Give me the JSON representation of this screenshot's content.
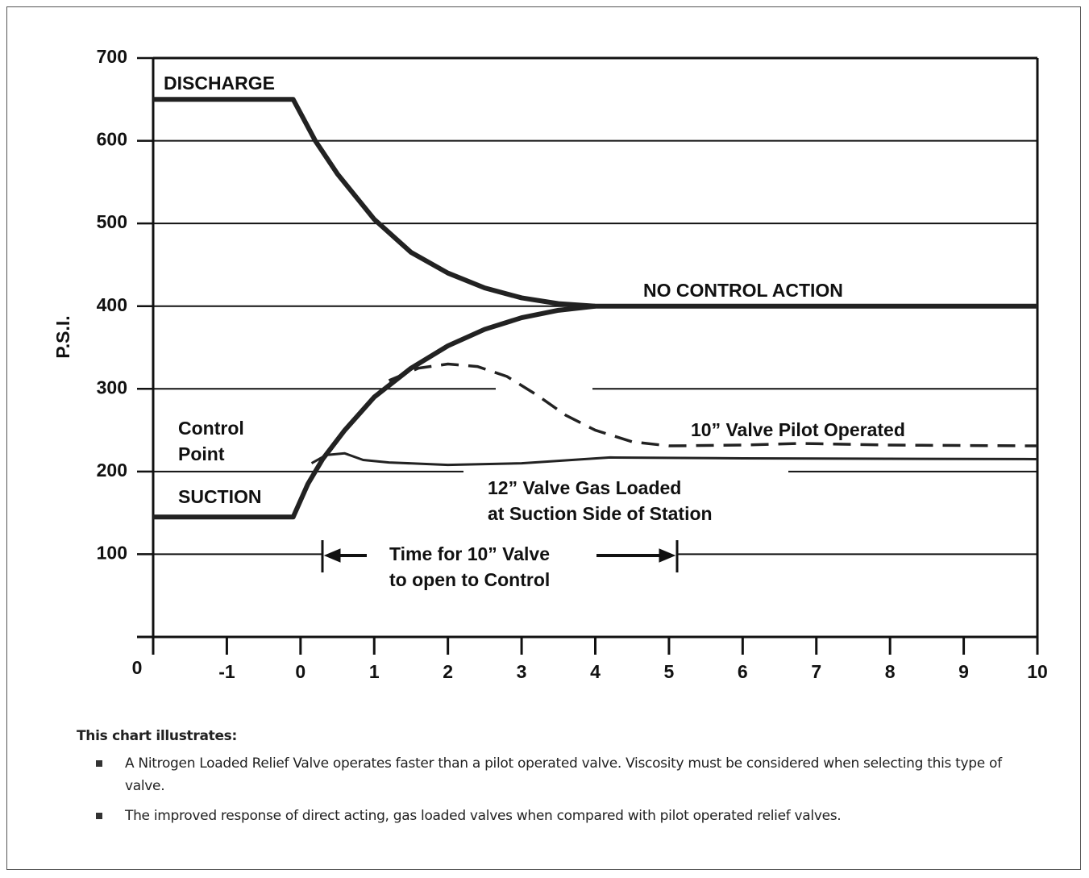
{
  "chart_data": {
    "type": "line",
    "y_label": "P.S.I.",
    "xlim": [
      -2,
      10
    ],
    "xticks": [
      -1,
      0,
      1,
      2,
      3,
      4,
      5,
      6,
      7,
      8,
      9,
      10
    ],
    "ylim": [
      0,
      700
    ],
    "yticks": [
      0,
      100,
      200,
      300,
      400,
      500,
      600,
      700
    ],
    "grid": true,
    "series": [
      {
        "name": "DISCHARGE",
        "color": "#222",
        "style": "solid",
        "x": [
          -2,
          -0.1,
          0.2,
          0.5,
          1,
          1.5,
          2,
          2.5,
          3,
          3.5,
          4,
          10
        ],
        "values": [
          650,
          650,
          600,
          560,
          505,
          465,
          440,
          422,
          410,
          403,
          400,
          400
        ]
      },
      {
        "name": "SUCTION",
        "color": "#222",
        "style": "solid",
        "x": [
          -2,
          -0.1,
          0.1,
          0.3,
          0.6,
          1,
          1.5,
          2,
          2.5,
          3,
          3.5,
          4
        ],
        "values": [
          145,
          145,
          185,
          215,
          250,
          290,
          325,
          352,
          372,
          386,
          395,
          400
        ]
      },
      {
        "name": "10” Valve Pilot Operated",
        "color": "#222",
        "style": "dashed",
        "x": [
          1.2,
          1.6,
          2,
          2.4,
          2.8,
          3.2,
          3.6,
          4,
          4.5,
          5,
          6,
          6.8,
          8,
          10
        ],
        "values": [
          310,
          325,
          330,
          327,
          315,
          293,
          268,
          250,
          236,
          231,
          232,
          234,
          232,
          231
        ]
      },
      {
        "name": "12” Valve Gas Loaded",
        "color": "#222",
        "style": "thin",
        "x": [
          0.15,
          0.35,
          0.6,
          0.85,
          1.2,
          2,
          3,
          4.2,
          6,
          10
        ],
        "values": [
          210,
          220,
          222,
          214,
          211,
          208,
          210,
          217,
          216,
          215
        ]
      }
    ],
    "annotations": [
      [
        "DISCHARGE"
      ],
      [
        "NO CONTROL ACTION"
      ],
      [
        "10” Valve Pilot Operated"
      ],
      [
        "Control",
        "Point"
      ],
      [
        "SUCTION"
      ],
      [
        "12” Valve Gas Loaded",
        "at Suction Side of Station"
      ],
      [
        "Time for 10” Valve",
        "to open to Control"
      ]
    ]
  },
  "notes": {
    "heading": "This chart illustrates:",
    "items": [
      "A Nitrogen Loaded Relief Valve operates faster than a pilot operated valve. Viscosity must be considered when selecting this type of valve.",
      "The improved response of direct acting, gas loaded valves when compared with pilot operated relief valves."
    ]
  }
}
